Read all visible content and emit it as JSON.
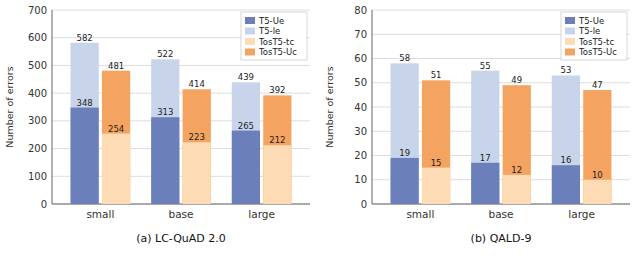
{
  "chart_data": [
    {
      "type": "bar",
      "title": "(a)  LC-QuAD 2.0",
      "y_label": "Number of errors",
      "categories": [
        "small",
        "base",
        "large"
      ],
      "series": [
        {
          "name": "T5-Ue",
          "color": "#6B7FBB",
          "values": [
            348,
            313,
            265
          ]
        },
        {
          "name": "T5-le",
          "color": "#C8D4EA",
          "values": [
            582,
            522,
            439
          ]
        },
        {
          "name": "TosT5-tc",
          "color": "#FDDCB5",
          "values": [
            254,
            223,
            212
          ]
        },
        {
          "name": "TosT5-Uc",
          "color": "#F4A460",
          "values": [
            481,
            414,
            392
          ]
        }
      ],
      "ylim": [
        0,
        700
      ],
      "yticks": [
        0,
        100,
        200,
        300,
        400,
        500,
        600,
        700
      ],
      "grid": true,
      "legend": "upper right",
      "data_labels": true
    },
    {
      "type": "bar",
      "title": "(b)  QALD-9",
      "y_label": "Number of errors",
      "categories": [
        "small",
        "base",
        "large"
      ],
      "series": [
        {
          "name": "T5-Ue",
          "color": "#6B7FBB",
          "values": [
            19,
            17,
            16
          ]
        },
        {
          "name": "T5-le",
          "color": "#C8D4EA",
          "values": [
            58,
            55,
            53
          ]
        },
        {
          "name": "TosT5-tc",
          "color": "#FDDCB5",
          "values": [
            15,
            12,
            10
          ]
        },
        {
          "name": "TosT5-Uc",
          "color": "#F4A460",
          "values": [
            51,
            49,
            47
          ]
        }
      ],
      "ylim": [
        0,
        80
      ],
      "yticks": [
        0,
        10,
        20,
        30,
        40,
        50,
        60,
        70,
        80
      ],
      "grid": true,
      "legend": "upper right",
      "data_labels": true
    }
  ]
}
